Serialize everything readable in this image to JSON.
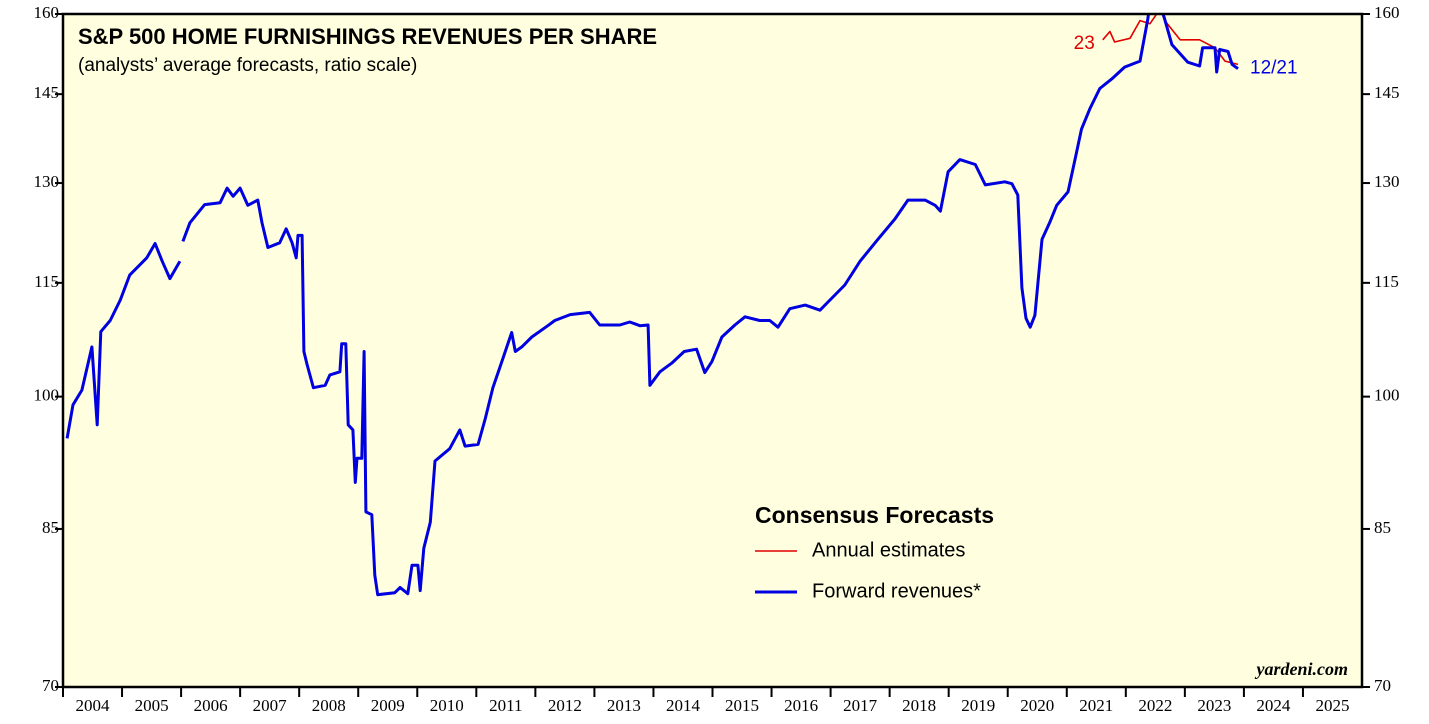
{
  "chart_data": {
    "type": "line",
    "title": "S&P 500 HOME FURNISHINGS REVENUES PER SHARE",
    "subtitle": "(analysts’ average forecasts, ratio scale)",
    "legend_title": "Consensus Forecasts",
    "source": "yardeni.com",
    "log_scale": true,
    "xlim": [
      2004,
      2026
    ],
    "xticks": [
      2004,
      2005,
      2006,
      2007,
      2008,
      2009,
      2010,
      2011,
      2012,
      2013,
      2014,
      2015,
      2016,
      2017,
      2018,
      2019,
      2020,
      2021,
      2022,
      2023,
      2024,
      2025
    ],
    "ylim": [
      70,
      160
    ],
    "yticks": [
      70,
      85,
      100,
      115,
      130,
      145,
      160
    ],
    "series": [
      {
        "name": "Annual estimates",
        "color": "#e00000",
        "annotation": "23",
        "x": [
          2021.61,
          2021.73,
          2021.81,
          2022.07,
          2022.24,
          2022.41,
          2022.58,
          2022.66,
          2022.92,
          2023.25,
          2023.51,
          2023.68,
          2023.9
        ],
        "values": [
          155.0,
          156.6,
          154.6,
          155.3,
          158.7,
          158.1,
          161,
          158.7,
          155.0,
          155.0,
          153.5,
          151.0,
          150.4
        ]
      },
      {
        "name": "Forward revenues*",
        "color": "#0000e0",
        "annotation": "12/21",
        "x": [
          2004.07,
          2004.17,
          2004.32,
          2004.49,
          2004.58,
          2004.64,
          2004.8,
          2004.97,
          2005.13,
          2005.42,
          2005.56,
          2005.68,
          2005.81,
          2005.98,
          2006.0,
          2006.03,
          2006.15,
          2006.4,
          2006.66,
          2006.78,
          2006.88,
          2007.0,
          2007.13,
          2007.3,
          2007.37,
          2007.47,
          2007.67,
          2007.78,
          2007.88,
          2007.95,
          2007.98,
          2008.05,
          2008.08,
          2008.13,
          2008.24,
          2008.44,
          2008.52,
          2008.69,
          2008.72,
          2008.79,
          2008.83,
          2008.91,
          2008.95,
          2008.98,
          2009.06,
          2009.1,
          2009.13,
          2009.23,
          2009.28,
          2009.33,
          2009.62,
          2009.71,
          2009.84,
          2009.91,
          2010.01,
          2010.05,
          2010.11,
          2010.22,
          2010.3,
          2010.55,
          2010.72,
          2010.81,
          2011.03,
          2011.15,
          2011.28,
          2011.45,
          2011.6,
          2011.66,
          2011.77,
          2011.94,
          2012.21,
          2012.33,
          2012.59,
          2012.92,
          2013.09,
          2013.43,
          2013.6,
          2013.77,
          2013.91,
          2013.94,
          2014.11,
          2014.31,
          2014.52,
          2014.73,
          2014.87,
          2014.99,
          2015.16,
          2015.38,
          2015.55,
          2015.8,
          2015.97,
          2016.11,
          2016.31,
          2016.57,
          2016.82,
          2016.99,
          2017.24,
          2017.5,
          2017.8,
          2018.09,
          2018.31,
          2018.6,
          2018.77,
          2018.86,
          2018.99,
          2019.19,
          2019.45,
          2019.62,
          2019.95,
          2020.07,
          2020.17,
          2020.24,
          2020.31,
          2020.38,
          2020.46,
          2020.58,
          2020.71,
          2020.83,
          2021.02,
          2021.14,
          2021.25,
          2021.39,
          2021.56,
          2021.76,
          2021.98,
          2022.24,
          2022.37,
          2022.41,
          2022.58,
          2022.66,
          2022.78,
          2023.05,
          2023.25,
          2023.3,
          2023.51,
          2023.54,
          2023.59,
          2023.73,
          2023.8,
          2023.9
        ],
        "values": [
          95.0,
          99.0,
          100.8,
          106.3,
          96.6,
          108.3,
          109.8,
          112.6,
          116.1,
          118.6,
          120.7,
          118.1,
          115.6,
          118.1,
          null,
          121.0,
          123.8,
          126.6,
          126.9,
          129.2,
          127.9,
          129.2,
          126.5,
          127.3,
          123.8,
          120.1,
          120.8,
          122.9,
          120.8,
          118.6,
          121.9,
          121.9,
          105.7,
          104.1,
          101.1,
          101.4,
          102.7,
          103.1,
          106.7,
          106.7,
          96.6,
          96.0,
          90.0,
          92.7,
          92.7,
          105.7,
          86.8,
          86.5,
          80.3,
          78.4,
          78.6,
          79.1,
          78.5,
          81.3,
          81.3,
          78.8,
          83.0,
          85.7,
          92.4,
          93.8,
          96.0,
          94.1,
          94.3,
          97.3,
          101.1,
          104.8,
          108.2,
          105.7,
          106.3,
          107.6,
          109.1,
          109.8,
          110.6,
          110.9,
          109.2,
          109.2,
          109.6,
          109.1,
          109.2,
          101.4,
          103.1,
          104.2,
          105.7,
          106.0,
          103.0,
          104.4,
          107.6,
          109.2,
          110.3,
          109.8,
          109.8,
          108.9,
          111.4,
          111.9,
          111.2,
          112.6,
          114.7,
          118.1,
          121.3,
          124.4,
          127.3,
          127.3,
          126.5,
          125.6,
          131.8,
          133.8,
          133.0,
          129.7,
          130.2,
          129.9,
          128.1,
          114.3,
          110.1,
          108.9,
          110.5,
          121.3,
          123.8,
          126.5,
          128.6,
          133.8,
          138.9,
          142.4,
          146.0,
          147.7,
          149.9,
          151.0,
          158.9,
          162,
          162,
          158.9,
          154.1,
          150.8,
          150.1,
          153.5,
          153.5,
          149.0,
          153.2,
          152.8,
          150.4,
          149.6
        ]
      }
    ]
  }
}
